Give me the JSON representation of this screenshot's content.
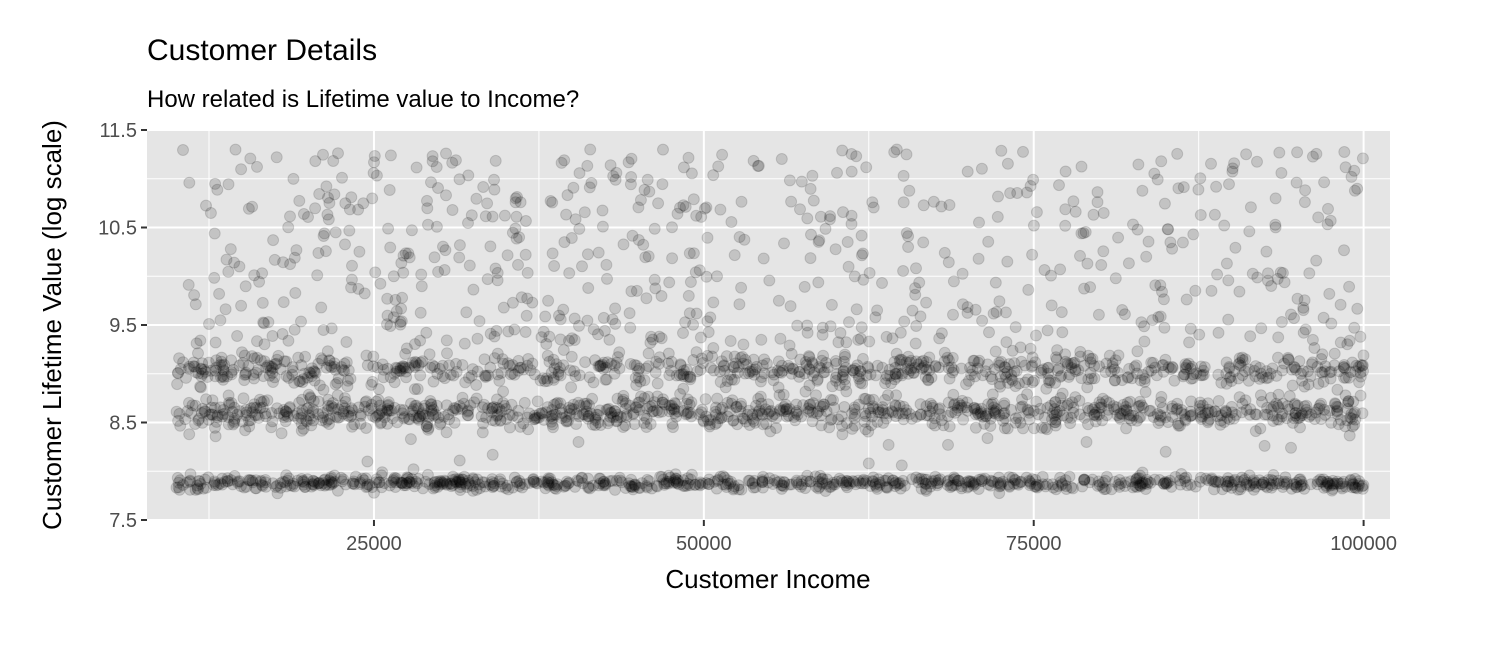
{
  "chart_data": {
    "type": "scatter",
    "title": "Customer Details",
    "subtitle": "How related is Lifetime value to Income?",
    "xlabel": "Customer Income",
    "ylabel": "Customer Lifetime Value (log scale)",
    "xlim": [
      7800,
      102000
    ],
    "ylim": [
      7.5,
      11.5
    ],
    "x_ticks": [
      25000,
      50000,
      75000,
      100000
    ],
    "x_tick_labels": [
      "25000",
      "50000",
      "75000",
      "100000"
    ],
    "y_ticks": [
      7.5,
      8.5,
      9.5,
      10.5,
      11.5
    ],
    "y_tick_labels": [
      "7.5",
      "8.5",
      "9.5",
      "10.5",
      "11.5"
    ],
    "grid": true,
    "legend": "none",
    "point_color": "#000000",
    "point_alpha": 0.15,
    "panel_background": "#e5e5e5",
    "grid_color": "#ffffff",
    "income_range": [
      10000,
      100000
    ],
    "approx_point_count": 3000,
    "distribution": [
      {
        "center": 7.88,
        "spread": 0.05,
        "share": 0.26
      },
      {
        "center": 8.6,
        "spread": 0.12,
        "share": 0.3
      },
      {
        "center": 9.05,
        "spread": 0.12,
        "share": 0.24
      },
      {
        "center": 9.75,
        "spread": 0.45,
        "share": 0.2
      }
    ],
    "points": [
      [
        11000,
        8.38
      ],
      [
        11100,
        7.97
      ],
      [
        12500,
        9.51
      ],
      [
        13000,
        8.36
      ],
      [
        13000,
        9.32
      ],
      [
        13500,
        8.56
      ],
      [
        14000,
        8.48
      ],
      [
        14400,
        10.14
      ],
      [
        14800,
        10.1
      ],
      [
        14200,
        8.7
      ],
      [
        15000,
        9.22
      ],
      [
        15500,
        7.91
      ],
      [
        17000,
        9.53
      ],
      [
        18000,
        8.39
      ],
      [
        19000,
        10.19
      ],
      [
        19800,
        7.84
      ],
      [
        20500,
        8.93
      ],
      [
        21000,
        9.68
      ],
      [
        21500,
        9.23
      ],
      [
        22000,
        9.07
      ],
      [
        22100,
        10.45
      ],
      [
        22800,
        8.75
      ],
      [
        23500,
        8.48
      ],
      [
        24000,
        8.57
      ],
      [
        24500,
        8.1
      ],
      [
        25000,
        7.78
      ],
      [
        25500,
        8.49
      ],
      [
        26000,
        9.77
      ],
      [
        26500,
        10.0
      ],
      [
        27000,
        8.63
      ],
      [
        27500,
        9.26
      ],
      [
        27800,
        8.33
      ],
      [
        28000,
        8.02
      ],
      [
        28500,
        9.34
      ],
      [
        29000,
        8.46
      ],
      [
        29500,
        8.63
      ],
      [
        29800,
        9.0
      ],
      [
        30000,
        9.05
      ],
      [
        30500,
        8.4
      ],
      [
        31000,
        8.62
      ],
      [
        31500,
        8.11
      ],
      [
        32000,
        9.63
      ],
      [
        32500,
        7.8
      ],
      [
        33000,
        9.54
      ],
      [
        33500,
        8.55
      ],
      [
        34000,
        8.17
      ],
      [
        35500,
        9.09
      ],
      [
        36000,
        10.4
      ],
      [
        36500,
        10.22
      ],
      [
        37000,
        9.73
      ],
      [
        37500,
        8.55
      ],
      [
        38500,
        8.57
      ],
      [
        40500,
        8.3
      ],
      [
        41000,
        9.12
      ],
      [
        42000,
        8.5
      ],
      [
        42500,
        9.44
      ],
      [
        44500,
        7.84
      ],
      [
        45500,
        8.75
      ],
      [
        46000,
        9.38
      ],
      [
        46500,
        8.9
      ],
      [
        47000,
        7.86
      ],
      [
        47500,
        9.03
      ],
      [
        48000,
        10.64
      ],
      [
        50000,
        8.51
      ],
      [
        51000,
        10.0
      ],
      [
        52000,
        8.99
      ],
      [
        52500,
        8.66
      ],
      [
        53000,
        9.3
      ],
      [
        54000,
        9.07
      ],
      [
        55000,
        8.61
      ],
      [
        56000,
        8.62
      ],
      [
        56500,
        9.29
      ],
      [
        57000,
        8.6
      ],
      [
        58000,
        8.88
      ],
      [
        58500,
        8.78
      ],
      [
        59000,
        9.4
      ],
      [
        59500,
        8.45
      ],
      [
        60000,
        8.96
      ],
      [
        60500,
        8.38
      ],
      [
        61000,
        9.53
      ],
      [
        62000,
        8.9
      ],
      [
        62500,
        8.08
      ],
      [
        63000,
        9.58
      ],
      [
        64000,
        8.27
      ],
      [
        64500,
        9.06
      ],
      [
        65000,
        8.06
      ],
      [
        65500,
        9.0
      ],
      [
        66000,
        9.06
      ],
      [
        66500,
        7.82
      ],
      [
        67000,
        8.94
      ],
      [
        68500,
        8.27
      ],
      [
        69000,
        8.69
      ],
      [
        70000,
        8.62
      ],
      [
        71000,
        8.59
      ],
      [
        71500,
        8.34
      ],
      [
        72000,
        8.6
      ],
      [
        72500,
        8.97
      ],
      [
        73000,
        10.15
      ],
      [
        73500,
        7.87
      ],
      [
        74000,
        9.27
      ],
      [
        74500,
        8.79
      ],
      [
        75000,
        8.62
      ],
      [
        75500,
        8.64
      ],
      [
        76000,
        8.43
      ],
      [
        77000,
        10.07
      ],
      [
        78000,
        8.6
      ],
      [
        79000,
        8.3
      ],
      [
        80000,
        7.86
      ],
      [
        81000,
        9.07
      ],
      [
        81500,
        7.84
      ],
      [
        82000,
        8.44
      ],
      [
        83000,
        8.67
      ],
      [
        84000,
        9.55
      ],
      [
        85000,
        8.2
      ],
      [
        85500,
        9.07
      ],
      [
        86500,
        8.52
      ],
      [
        87000,
        9.07
      ],
      [
        88000,
        8.59
      ],
      [
        89000,
        9.42
      ],
      [
        90000,
        8.66
      ],
      [
        91000,
        7.92
      ],
      [
        92500,
        8.26
      ],
      [
        93000,
        9.9
      ],
      [
        94500,
        8.24
      ],
      [
        96500,
        9.07
      ],
      [
        97000,
        7.83
      ],
      [
        97500,
        8.95
      ],
      [
        98500,
        9.07
      ],
      [
        99000,
        8.55
      ],
      [
        99800,
        9.09
      ]
    ]
  }
}
